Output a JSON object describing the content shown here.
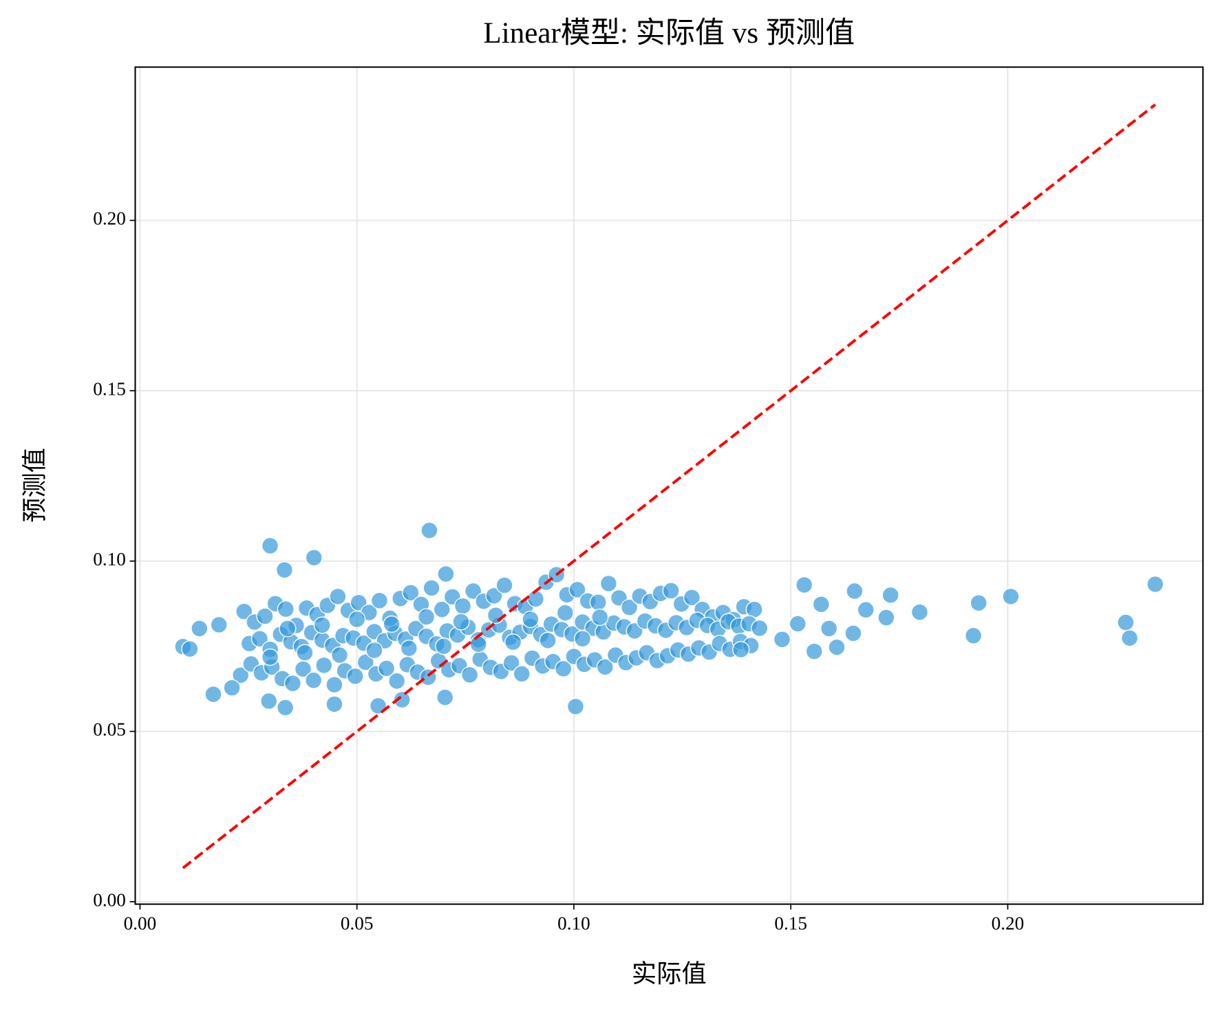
{
  "chart_data": {
    "type": "scatter",
    "title": "Linear模型: 实际值 vs 预测值",
    "x_label": "实际值",
    "y_label": "预测值",
    "grid": true,
    "xlim": [
      -0.0011,
      0.245
    ],
    "ylim": [
      -0.0007,
      0.245
    ],
    "xticks": [
      {
        "value": 0,
        "label": "0.00"
      },
      {
        "value": 0.05,
        "label": "0.05"
      },
      {
        "value": 0.1,
        "label": "0.10"
      },
      {
        "value": 0.15,
        "label": "0.15"
      },
      {
        "value": 0.2,
        "label": "0.20"
      }
    ],
    "yticks": [
      {
        "value": 0,
        "label": "0.00"
      },
      {
        "value": 0.05,
        "label": "0.05"
      },
      {
        "value": 0.1,
        "label": "0.10"
      },
      {
        "value": 0.15,
        "label": "0.15"
      },
      {
        "value": 0.2,
        "label": "0.20"
      }
    ],
    "series": [
      {
        "color": "#3498db",
        "x": [
          0.024,
          0.0264,
          0.0288,
          0.0312,
          0.0336,
          0.036,
          0.0384,
          0.0408,
          0.0432,
          0.0456,
          0.048,
          0.0504,
          0.0528,
          0.0552,
          0.0576,
          0.06,
          0.0624,
          0.0648,
          0.0672,
          0.0696,
          0.072,
          0.0744,
          0.0768,
          0.0792,
          0.0816,
          0.084,
          0.0864,
          0.0888,
          0.0912,
          0.0936,
          0.096,
          0.0984,
          0.1008,
          0.1032,
          0.1056,
          0.108,
          0.1104,
          0.1128,
          0.1152,
          0.1176,
          0.12,
          0.1224,
          0.1248,
          0.1272,
          0.1296,
          0.132,
          0.1344,
          0.1368,
          0.1392,
          0.1416,
          0.0252,
          0.0276,
          0.03,
          0.0324,
          0.0348,
          0.0372,
          0.0396,
          0.042,
          0.0444,
          0.0468,
          0.0492,
          0.0516,
          0.054,
          0.0564,
          0.0588,
          0.0612,
          0.0636,
          0.066,
          0.0684,
          0.0708,
          0.0732,
          0.0756,
          0.078,
          0.0804,
          0.0828,
          0.0852,
          0.0876,
          0.09,
          0.0924,
          0.0948,
          0.0972,
          0.0996,
          0.102,
          0.1044,
          0.1068,
          0.1092,
          0.1116,
          0.114,
          0.1164,
          0.1188,
          0.1212,
          0.1236,
          0.126,
          0.1284,
          0.1308,
          0.1332,
          0.1356,
          0.138,
          0.1404,
          0.1428,
          0.0232,
          0.0256,
          0.028,
          0.0304,
          0.0328,
          0.0352,
          0.0376,
          0.04,
          0.0424,
          0.0448,
          0.0472,
          0.0496,
          0.052,
          0.0544,
          0.0568,
          0.0592,
          0.0616,
          0.064,
          0.0664,
          0.0688,
          0.0712,
          0.0736,
          0.076,
          0.0784,
          0.0808,
          0.0832,
          0.0856,
          0.088,
          0.0904,
          0.0928,
          0.0952,
          0.0976,
          0.1,
          0.1024,
          0.1048,
          0.1072,
          0.1096,
          0.112,
          0.1144,
          0.1168,
          0.1192,
          0.1216,
          0.124,
          0.1264,
          0.1288,
          0.1312,
          0.1336,
          0.136,
          0.1384,
          0.1408,
          0.03,
          0.034,
          0.038,
          0.042,
          0.046,
          0.05,
          0.054,
          0.058,
          0.062,
          0.066,
          0.07,
          0.074,
          0.078,
          0.082,
          0.086,
          0.09,
          0.094,
          0.098,
          0.102,
          0.106,
          0.0099,
          0.0115,
          0.0137,
          0.0182,
          0.0169,
          0.0212,
          0.03,
          0.0333,
          0.0401,
          0.0667,
          0.0705,
          0.1004,
          0.0297,
          0.0335,
          0.0448,
          0.0549,
          0.0604,
          0.0703,
          0.1531,
          0.1647,
          0.173,
          0.1797,
          0.1933,
          0.2007,
          0.1921,
          0.2272,
          0.2281,
          0.234,
          0.1554,
          0.1606,
          0.157,
          0.172,
          0.1673,
          0.1644,
          0.148,
          0.1516,
          0.1588,
          0.1385
        ],
        "values": [
          0.0852,
          0.0821,
          0.0838,
          0.0875,
          0.0859,
          0.0811,
          0.0862,
          0.0843,
          0.087,
          0.0896,
          0.0855,
          0.0878,
          0.0849,
          0.0884,
          0.0832,
          0.089,
          0.0907,
          0.0873,
          0.0921,
          0.0858,
          0.0895,
          0.0868,
          0.0912,
          0.0882,
          0.0898,
          0.0929,
          0.0875,
          0.0866,
          0.0889,
          0.0938,
          0.096,
          0.0901,
          0.0916,
          0.0883,
          0.0879,
          0.0934,
          0.0892,
          0.0864,
          0.0897,
          0.0881,
          0.0905,
          0.0913,
          0.0874,
          0.0893,
          0.0858,
          0.0836,
          0.0849,
          0.0828,
          0.0866,
          0.0858,
          0.0758,
          0.0772,
          0.0741,
          0.0785,
          0.0763,
          0.0749,
          0.079,
          0.0768,
          0.0752,
          0.0781,
          0.0774,
          0.0759,
          0.0793,
          0.0766,
          0.0788,
          0.0771,
          0.0802,
          0.0779,
          0.0757,
          0.0795,
          0.0783,
          0.0806,
          0.0769,
          0.0798,
          0.0812,
          0.0776,
          0.0791,
          0.0808,
          0.0784,
          0.0815,
          0.0799,
          0.0786,
          0.0821,
          0.0803,
          0.0792,
          0.0818,
          0.0807,
          0.0795,
          0.0824,
          0.081,
          0.0797,
          0.0819,
          0.0805,
          0.0826,
          0.0811,
          0.08,
          0.0822,
          0.0809,
          0.0816,
          0.0803,
          0.0665,
          0.0698,
          0.0672,
          0.0689,
          0.0655,
          0.0641,
          0.0683,
          0.065,
          0.0694,
          0.0637,
          0.0678,
          0.0662,
          0.0703,
          0.0669,
          0.0685,
          0.0648,
          0.0696,
          0.0674,
          0.0659,
          0.0707,
          0.0681,
          0.0693,
          0.0666,
          0.0712,
          0.0688,
          0.0676,
          0.0701,
          0.0669,
          0.0715,
          0.0692,
          0.0705,
          0.0684,
          0.072,
          0.0697,
          0.071,
          0.0689,
          0.0724,
          0.0702,
          0.0716,
          0.0731,
          0.0708,
          0.0722,
          0.0739,
          0.0727,
          0.0745,
          0.0733,
          0.0758,
          0.0741,
          0.0764,
          0.0752,
          0.0718,
          0.0802,
          0.0731,
          0.0812,
          0.0724,
          0.0829,
          0.0738,
          0.0815,
          0.0744,
          0.0836,
          0.075,
          0.0822,
          0.0756,
          0.0841,
          0.0762,
          0.0829,
          0.0767,
          0.0848,
          0.0772,
          0.0835,
          0.0749,
          0.0742,
          0.0802,
          0.0813,
          0.0609,
          0.0628,
          0.1045,
          0.0974,
          0.101,
          0.109,
          0.0962,
          0.0573,
          0.0589,
          0.057,
          0.058,
          0.0575,
          0.0593,
          0.06,
          0.093,
          0.0912,
          0.09,
          0.085,
          0.0877,
          0.0896,
          0.0781,
          0.082,
          0.0774,
          0.0932,
          0.0735,
          0.0747,
          0.0873,
          0.0834,
          0.0857,
          0.0788,
          0.077,
          0.0816,
          0.0802,
          0.074
        ]
      }
    ],
    "reference_line": {
      "x": [
        0.0099,
        0.234
      ],
      "values": [
        0.0099,
        0.234
      ],
      "color": "#ff0000"
    }
  }
}
